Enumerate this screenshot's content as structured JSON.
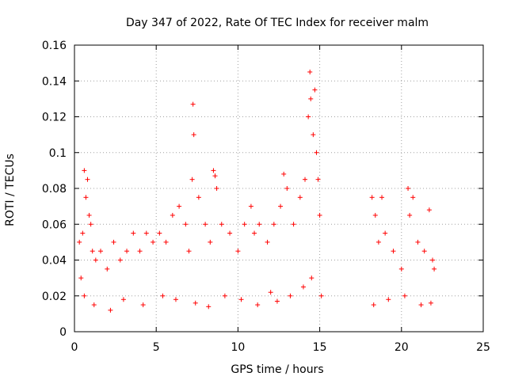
{
  "chart_data": {
    "type": "scatter",
    "title": "Day 347 of 2022, Rate Of TEC Index for receiver malm",
    "xlabel": "GPS time / hours",
    "ylabel": "ROTI / TECUs",
    "xlim": [
      0,
      25
    ],
    "ylim": [
      0,
      0.16
    ],
    "x_ticks": [
      0,
      5,
      10,
      15,
      20,
      25
    ],
    "y_ticks": [
      0,
      0.02,
      0.04,
      0.06,
      0.08,
      0.1,
      0.12,
      0.14,
      0.16
    ],
    "x_tick_labels": [
      "0",
      "5",
      "10",
      "15",
      "20",
      "25"
    ],
    "y_tick_labels": [
      "0",
      "0.02",
      "0.04",
      "0.06",
      "0.08",
      "0.1",
      "0.12",
      "0.14",
      "0.16"
    ],
    "grid": true,
    "marker": "plus",
    "series": [
      {
        "color": "#ff0000",
        "x": [
          0.3,
          0.4,
          0.5,
          0.6,
          0.7,
          0.8,
          0.9,
          1.0,
          1.1,
          1.3,
          1.6,
          2.0,
          2.4,
          2.8,
          3.2,
          3.6,
          4.0,
          4.4,
          4.8,
          5.2,
          5.6,
          6.0,
          6.4,
          6.8,
          7.0,
          7.2,
          7.25,
          7.3,
          7.6,
          8.0,
          8.3,
          8.5,
          8.6,
          8.7,
          9.0,
          9.5,
          10.0,
          10.4,
          10.8,
          11.0,
          11.3,
          11.8,
          12.2,
          12.6,
          12.8,
          13.0,
          13.4,
          13.8,
          14.1,
          14.3,
          14.4,
          14.45,
          14.6,
          14.7,
          14.8,
          14.9,
          15.0,
          15.1,
          18.2,
          18.4,
          18.6,
          18.8,
          19.0,
          19.5,
          20.0,
          20.4,
          20.5,
          20.7,
          21.0,
          21.4,
          21.7,
          21.9,
          22.0,
          0.6,
          1.2,
          2.2,
          3.0,
          4.2,
          5.4,
          6.2,
          7.4,
          8.2,
          9.2,
          10.2,
          11.2,
          12.0,
          12.4,
          13.2,
          14.0,
          14.5,
          18.3,
          19.2,
          20.2,
          21.2,
          21.8
        ],
        "y": [
          0.05,
          0.03,
          0.055,
          0.09,
          0.075,
          0.085,
          0.065,
          0.06,
          0.045,
          0.04,
          0.045,
          0.035,
          0.05,
          0.04,
          0.045,
          0.055,
          0.045,
          0.055,
          0.05,
          0.055,
          0.05,
          0.065,
          0.07,
          0.06,
          0.045,
          0.085,
          0.127,
          0.11,
          0.075,
          0.06,
          0.05,
          0.09,
          0.087,
          0.08,
          0.06,
          0.055,
          0.045,
          0.06,
          0.07,
          0.055,
          0.06,
          0.05,
          0.06,
          0.07,
          0.088,
          0.08,
          0.06,
          0.075,
          0.085,
          0.12,
          0.145,
          0.13,
          0.11,
          0.135,
          0.1,
          0.085,
          0.065,
          0.02,
          0.075,
          0.065,
          0.05,
          0.075,
          0.055,
          0.045,
          0.035,
          0.08,
          0.065,
          0.075,
          0.05,
          0.045,
          0.068,
          0.04,
          0.035,
          0.02,
          0.015,
          0.012,
          0.018,
          0.015,
          0.02,
          0.018,
          0.016,
          0.014,
          0.02,
          0.018,
          0.015,
          0.022,
          0.017,
          0.02,
          0.025,
          0.03,
          0.015,
          0.018,
          0.02,
          0.015,
          0.016
        ]
      }
    ]
  }
}
